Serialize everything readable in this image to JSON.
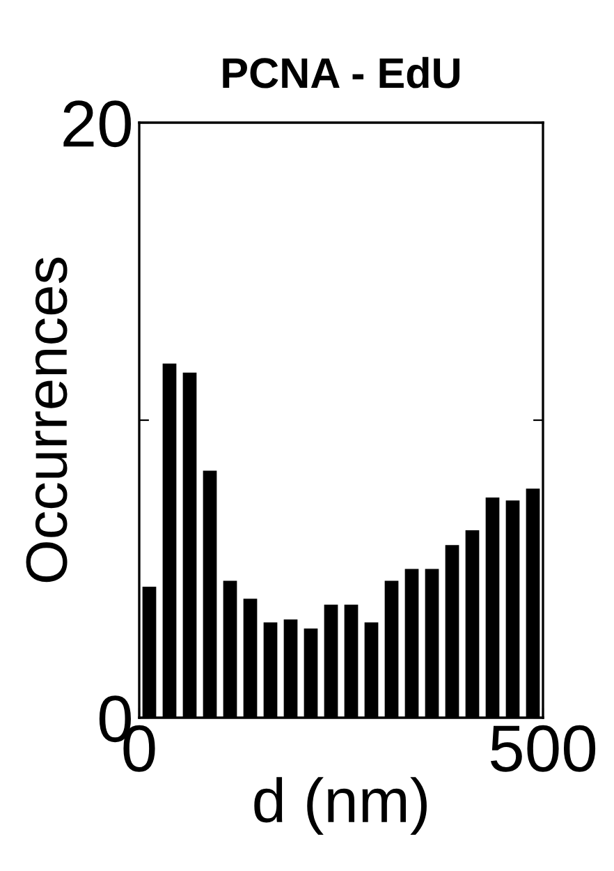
{
  "chart_data": {
    "type": "histogram",
    "title": "PCNA - EdU",
    "xlabel": "d (nm)",
    "ylabel": "Occurrences",
    "bins": [
      0,
      25,
      50,
      75,
      100,
      125,
      150,
      175,
      200,
      225,
      250,
      275,
      300,
      325,
      350,
      375,
      400,
      425,
      450,
      475,
      500
    ],
    "values": [
      4.4,
      11.9,
      11.6,
      8.3,
      4.6,
      4.0,
      3.2,
      3.3,
      3.0,
      3.8,
      3.8,
      3.2,
      4.6,
      5.0,
      5.0,
      5.8,
      6.3,
      7.4,
      7.3,
      7.7
    ],
    "color": "#000000",
    "xlim": [
      0,
      500
    ],
    "xticks": [
      0,
      500
    ],
    "ylim": [
      0,
      20
    ],
    "yticks": [
      0,
      {
        "value": 10,
        "label": null
      },
      20
    ],
    "grid": false
  }
}
